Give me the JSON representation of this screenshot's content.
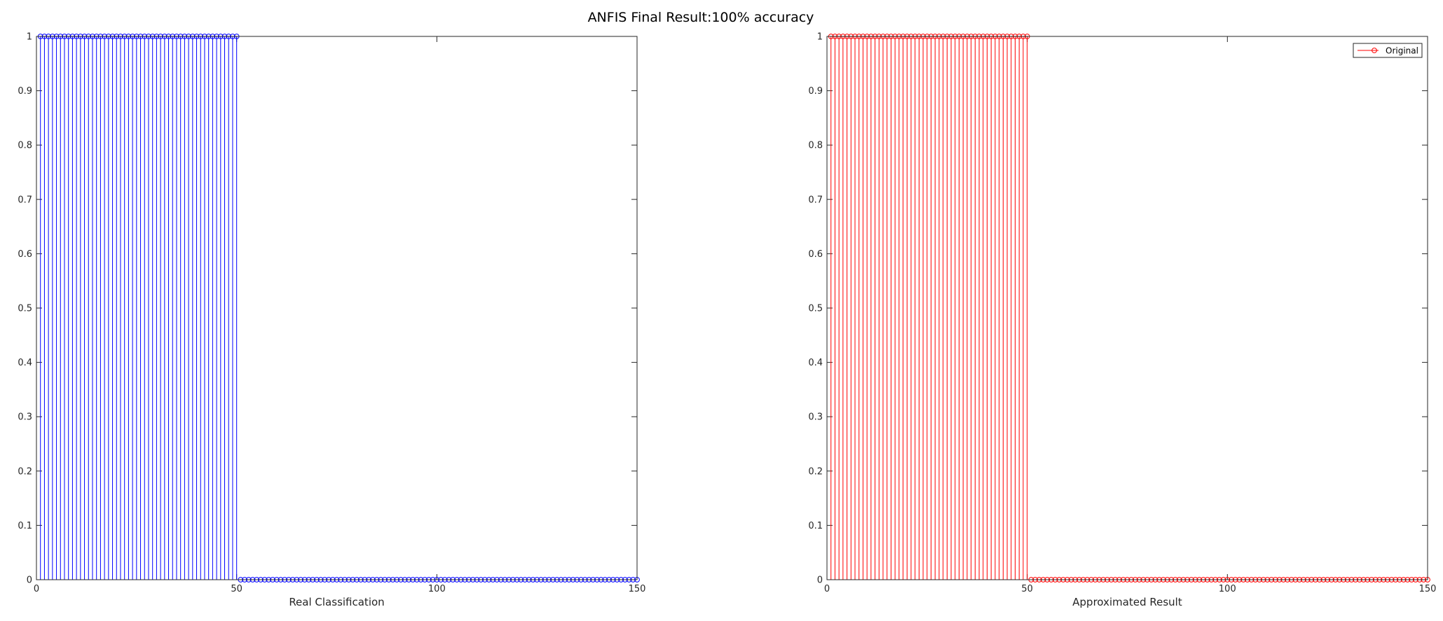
{
  "figure": {
    "title": "ANFIS Final Result:100% accuracy"
  },
  "chart_data": [
    {
      "type": "stem",
      "title": "",
      "xlabel": "Real Classification",
      "ylabel": "",
      "xlim": [
        0,
        150
      ],
      "ylim": [
        0,
        1
      ],
      "xticks": [
        0,
        50,
        100,
        150
      ],
      "xtick_labels": [
        "0",
        "50",
        "100",
        "150"
      ],
      "yticks": [
        0,
        0.1,
        0.2,
        0.3,
        0.4,
        0.5,
        0.6,
        0.7,
        0.8,
        0.9,
        1
      ],
      "ytick_labels": [
        "0",
        "0.1",
        "0.2",
        "0.3",
        "0.4",
        "0.5",
        "0.6",
        "0.7",
        "0.8",
        "0.9",
        "1"
      ],
      "grid": false,
      "legend": null,
      "series": [
        {
          "color": "#0000ff",
          "marker": "circle-open",
          "x_range": [
            1,
            150
          ],
          "value_rule": "y = 1 for x in 1..50, y = 0 for x in 51..150",
          "segments": [
            {
              "x_from": 1,
              "x_to": 50,
              "y": 1
            },
            {
              "x_from": 51,
              "x_to": 150,
              "y": 0
            }
          ]
        }
      ]
    },
    {
      "type": "stem",
      "title": "",
      "xlabel": "Approximated Result",
      "ylabel": "",
      "xlim": [
        0,
        150
      ],
      "ylim": [
        0,
        1
      ],
      "xticks": [
        0,
        50,
        100,
        150
      ],
      "xtick_labels": [
        "0",
        "50",
        "100",
        "150"
      ],
      "yticks": [
        0,
        0.1,
        0.2,
        0.3,
        0.4,
        0.5,
        0.6,
        0.7,
        0.8,
        0.9,
        1
      ],
      "ytick_labels": [
        "0",
        "0.1",
        "0.2",
        "0.3",
        "0.4",
        "0.5",
        "0.6",
        "0.7",
        "0.8",
        "0.9",
        "1"
      ],
      "grid": false,
      "legend": {
        "placement": "top-right",
        "entries": [
          "Original"
        ]
      },
      "series": [
        {
          "name": "Original",
          "color": "#ff0000",
          "marker": "circle-open",
          "x_range": [
            1,
            150
          ],
          "value_rule": "y = 1 for x in 1..50, y = 0 for x in 51..150",
          "segments": [
            {
              "x_from": 1,
              "x_to": 50,
              "y": 1
            },
            {
              "x_from": 51,
              "x_to": 150,
              "y": 0
            }
          ]
        }
      ]
    }
  ]
}
